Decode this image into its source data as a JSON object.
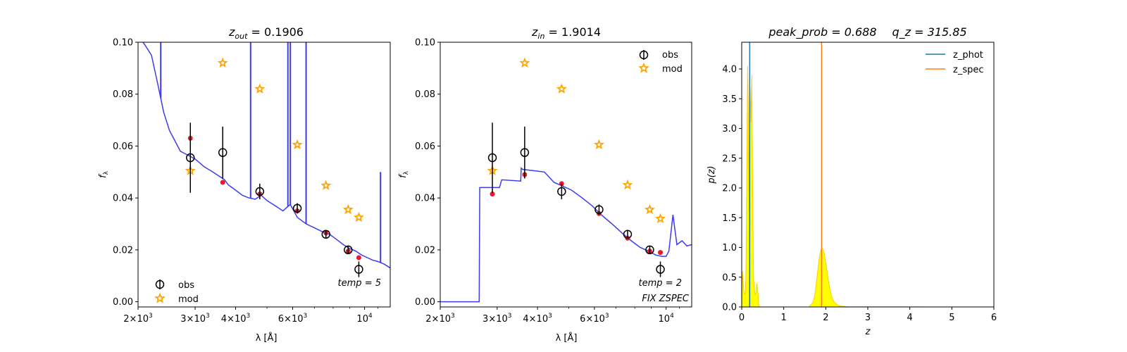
{
  "chart_data": [
    {
      "type": "scatter",
      "title": "z_out = 0.1906",
      "title_main": "z",
      "title_sub": "out",
      "title_value": " = 0.1906",
      "xlabel": "λ [Å]",
      "ylabel": "f",
      "ylabel_sub": "λ",
      "xscale": "log",
      "xlim": [
        2000,
        12000
      ],
      "ylim": [
        -0.002,
        0.1
      ],
      "yticks": [
        0.0,
        0.02,
        0.04,
        0.06,
        0.08,
        0.1
      ],
      "ytick_labels": [
        "0.00",
        "0.02",
        "0.04",
        "0.06",
        "0.08",
        "0.10"
      ],
      "xticks": [
        {
          "v": 2000,
          "m": "2",
          "e": "3"
        },
        {
          "v": 3000,
          "m": "3",
          "e": "3"
        },
        {
          "v": 4000,
          "m": "4",
          "e": "3"
        },
        {
          "v": 6000,
          "m": "6",
          "e": "3"
        },
        {
          "v": 10000,
          "m": "",
          "e": "4"
        }
      ],
      "legend": {
        "placement": "lower-left",
        "entries": [
          "obs",
          "mod"
        ]
      },
      "annotations": [
        {
          "text": "temp = 5"
        }
      ],
      "obs": {
        "x": [
          2900,
          3650,
          4750,
          6200,
          7600,
          8900,
          9600
        ],
        "y": [
          0.0555,
          0.0575,
          0.0425,
          0.036,
          0.026,
          0.02,
          0.0125
        ],
        "err": [
          0.0135,
          0.01,
          0.003,
          0.002,
          0.0015,
          0.0015,
          0.003
        ]
      },
      "mod": {
        "x": [
          2900,
          3650,
          4750,
          6200,
          7600,
          8900,
          9600
        ],
        "y": [
          0.0505,
          0.092,
          0.082,
          0.0605,
          0.0448,
          0.0355,
          0.0325
        ]
      },
      "model_photometry": {
        "x": [
          2900,
          3650,
          4750,
          6200,
          7600,
          8900,
          9600
        ],
        "y": [
          0.063,
          0.046,
          0.0415,
          0.035,
          0.0265,
          0.0195,
          0.017
        ]
      },
      "spectrum": {
        "x": [
          2000,
          2100,
          2200,
          2300,
          2400,
          2500,
          2600,
          2700,
          2800,
          2900,
          3000,
          3100,
          3200,
          3300,
          3400,
          3500,
          3600,
          3700,
          3800,
          3900,
          4000,
          4200,
          4400,
          4600,
          4800,
          5000,
          5300,
          5600,
          5900,
          6200,
          6600,
          7000,
          7400,
          7800,
          8200,
          8600,
          9000,
          9400,
          9800,
          10200,
          10600,
          11000,
          11500,
          12000
        ],
        "y": [
          0.1025,
          0.099,
          0.095,
          0.084,
          0.073,
          0.066,
          0.062,
          0.058,
          0.057,
          0.056,
          0.055,
          0.0535,
          0.052,
          0.051,
          0.05,
          0.049,
          0.048,
          0.047,
          0.045,
          0.044,
          0.043,
          0.041,
          0.04,
          0.0395,
          0.041,
          0.039,
          0.037,
          0.035,
          0.0375,
          0.0325,
          0.03,
          0.0285,
          0.027,
          0.026,
          0.024,
          0.022,
          0.0205,
          0.0195,
          0.018,
          0.017,
          0.016,
          0.0155,
          0.0145,
          0.013
        ]
      },
      "emission_lines": [
        {
          "x": 2350,
          "y": 0.1
        },
        {
          "x": 4450,
          "y": 0.1
        },
        {
          "x": 5800,
          "y": 0.1
        },
        {
          "x": 5900,
          "y": 0.1
        },
        {
          "x": 6600,
          "y": 0.1
        },
        {
          "x": 11200,
          "y": 0.05
        }
      ]
    },
    {
      "type": "scatter",
      "title": "z_in = 1.9014",
      "title_main": "z",
      "title_sub": "in",
      "title_value": " = 1.9014",
      "xlabel": "λ [Å]",
      "ylabel": "f",
      "ylabel_sub": "λ",
      "xscale": "log",
      "xlim": [
        2000,
        12000
      ],
      "ylim": [
        -0.002,
        0.1
      ],
      "yticks": [
        0.0,
        0.02,
        0.04,
        0.06,
        0.08,
        0.1
      ],
      "ytick_labels": [
        "0.00",
        "0.02",
        "0.04",
        "0.06",
        "0.08",
        "0.10"
      ],
      "xticks": [
        {
          "v": 2000,
          "m": "2",
          "e": "3"
        },
        {
          "v": 3000,
          "m": "3",
          "e": "3"
        },
        {
          "v": 4000,
          "m": "4",
          "e": "3"
        },
        {
          "v": 6000,
          "m": "6",
          "e": "3"
        },
        {
          "v": 10000,
          "m": "",
          "e": "4"
        }
      ],
      "legend": {
        "placement": "upper-right",
        "entries": [
          "obs",
          "mod"
        ]
      },
      "annotations": [
        {
          "text": "temp = 2"
        },
        {
          "text": "FIX ZSPEC"
        }
      ],
      "obs": {
        "x": [
          2900,
          3650,
          4750,
          6200,
          7600,
          8900,
          9600
        ],
        "y": [
          0.0555,
          0.0575,
          0.0425,
          0.0355,
          0.026,
          0.02,
          0.0125
        ],
        "err": [
          0.0135,
          0.01,
          0.003,
          0.002,
          0.0015,
          0.0015,
          0.003
        ]
      },
      "mod": {
        "x": [
          2900,
          3650,
          4750,
          6200,
          7600,
          8900,
          9600
        ],
        "y": [
          0.0505,
          0.092,
          0.082,
          0.0605,
          0.045,
          0.0355,
          0.032
        ]
      },
      "model_photometry": {
        "x": [
          2900,
          3650,
          4750,
          6200,
          7600,
          8900,
          9600
        ],
        "y": [
          0.0415,
          0.049,
          0.0455,
          0.034,
          0.0245,
          0.0195,
          0.019
        ]
      },
      "spectrum": {
        "x": [
          2000,
          2640,
          2650,
          2900,
          3050,
          3100,
          3550,
          3560,
          3600,
          3900,
          4200,
          4500,
          4800,
          5100,
          5500,
          5900,
          6300,
          6800,
          7300,
          7800,
          8300,
          8800,
          9300,
          9700,
          10000,
          10200,
          10500,
          10800,
          11200,
          11600,
          12000
        ],
        "y": [
          0.0,
          0.0,
          0.044,
          0.044,
          0.044,
          0.047,
          0.0465,
          0.0515,
          0.051,
          0.0505,
          0.05,
          0.046,
          0.0445,
          0.043,
          0.04,
          0.037,
          0.0335,
          0.03,
          0.0265,
          0.0235,
          0.021,
          0.0195,
          0.018,
          0.0175,
          0.0175,
          0.0195,
          0.0335,
          0.022,
          0.0235,
          0.0215,
          0.022
        ]
      }
    },
    {
      "type": "area",
      "title": "peak_prob = 0.688     q_z = 315.85",
      "title_left": "peak_prob = 0.688",
      "title_right": "q_z = 315.85",
      "xlabel": "z",
      "ylabel": "p(z)",
      "xlim": [
        0,
        6
      ],
      "ylim": [
        0,
        4.45
      ],
      "xticks": [
        0,
        1,
        2,
        3,
        4,
        5,
        6
      ],
      "yticks": [
        0.0,
        0.5,
        1.0,
        1.5,
        2.0,
        2.5,
        3.0,
        3.5,
        4.0
      ],
      "ytick_labels": [
        "0.0",
        "0.5",
        "1.0",
        "1.5",
        "2.0",
        "2.5",
        "3.0",
        "3.5",
        "4.0"
      ],
      "legend": {
        "placement": "upper-right",
        "entries": [
          "z_phot",
          "z_spec"
        ]
      },
      "z_phot": 0.19,
      "z_spec": 1.9,
      "colors": {
        "z_phot": "#1f77b4",
        "z_spec": "#ff7f0e",
        "fill": "#ffff00",
        "outline": "#ffcc00"
      },
      "pz": {
        "x": [
          0.0,
          0.02,
          0.05,
          0.08,
          0.1,
          0.12,
          0.14,
          0.16,
          0.18,
          0.2,
          0.22,
          0.24,
          0.26,
          0.28,
          0.3,
          0.32,
          0.34,
          0.36,
          0.38,
          0.4,
          0.42,
          0.45,
          1.6,
          1.7,
          1.75,
          1.8,
          1.85,
          1.9,
          1.95,
          2.0,
          2.05,
          2.1,
          2.15,
          2.2,
          2.3,
          2.5,
          5.0
        ],
        "y": [
          0.0,
          0.6,
          0.25,
          0.2,
          0.5,
          2.2,
          4.05,
          3.2,
          1.6,
          3.7,
          3.1,
          3.9,
          2.0,
          0.5,
          0.3,
          0.2,
          0.25,
          0.4,
          0.3,
          0.05,
          0.0,
          0.0,
          0.0,
          0.08,
          0.25,
          0.55,
          0.85,
          1.0,
          0.95,
          0.75,
          0.5,
          0.3,
          0.15,
          0.08,
          0.02,
          0.005,
          0.0
        ]
      }
    }
  ]
}
